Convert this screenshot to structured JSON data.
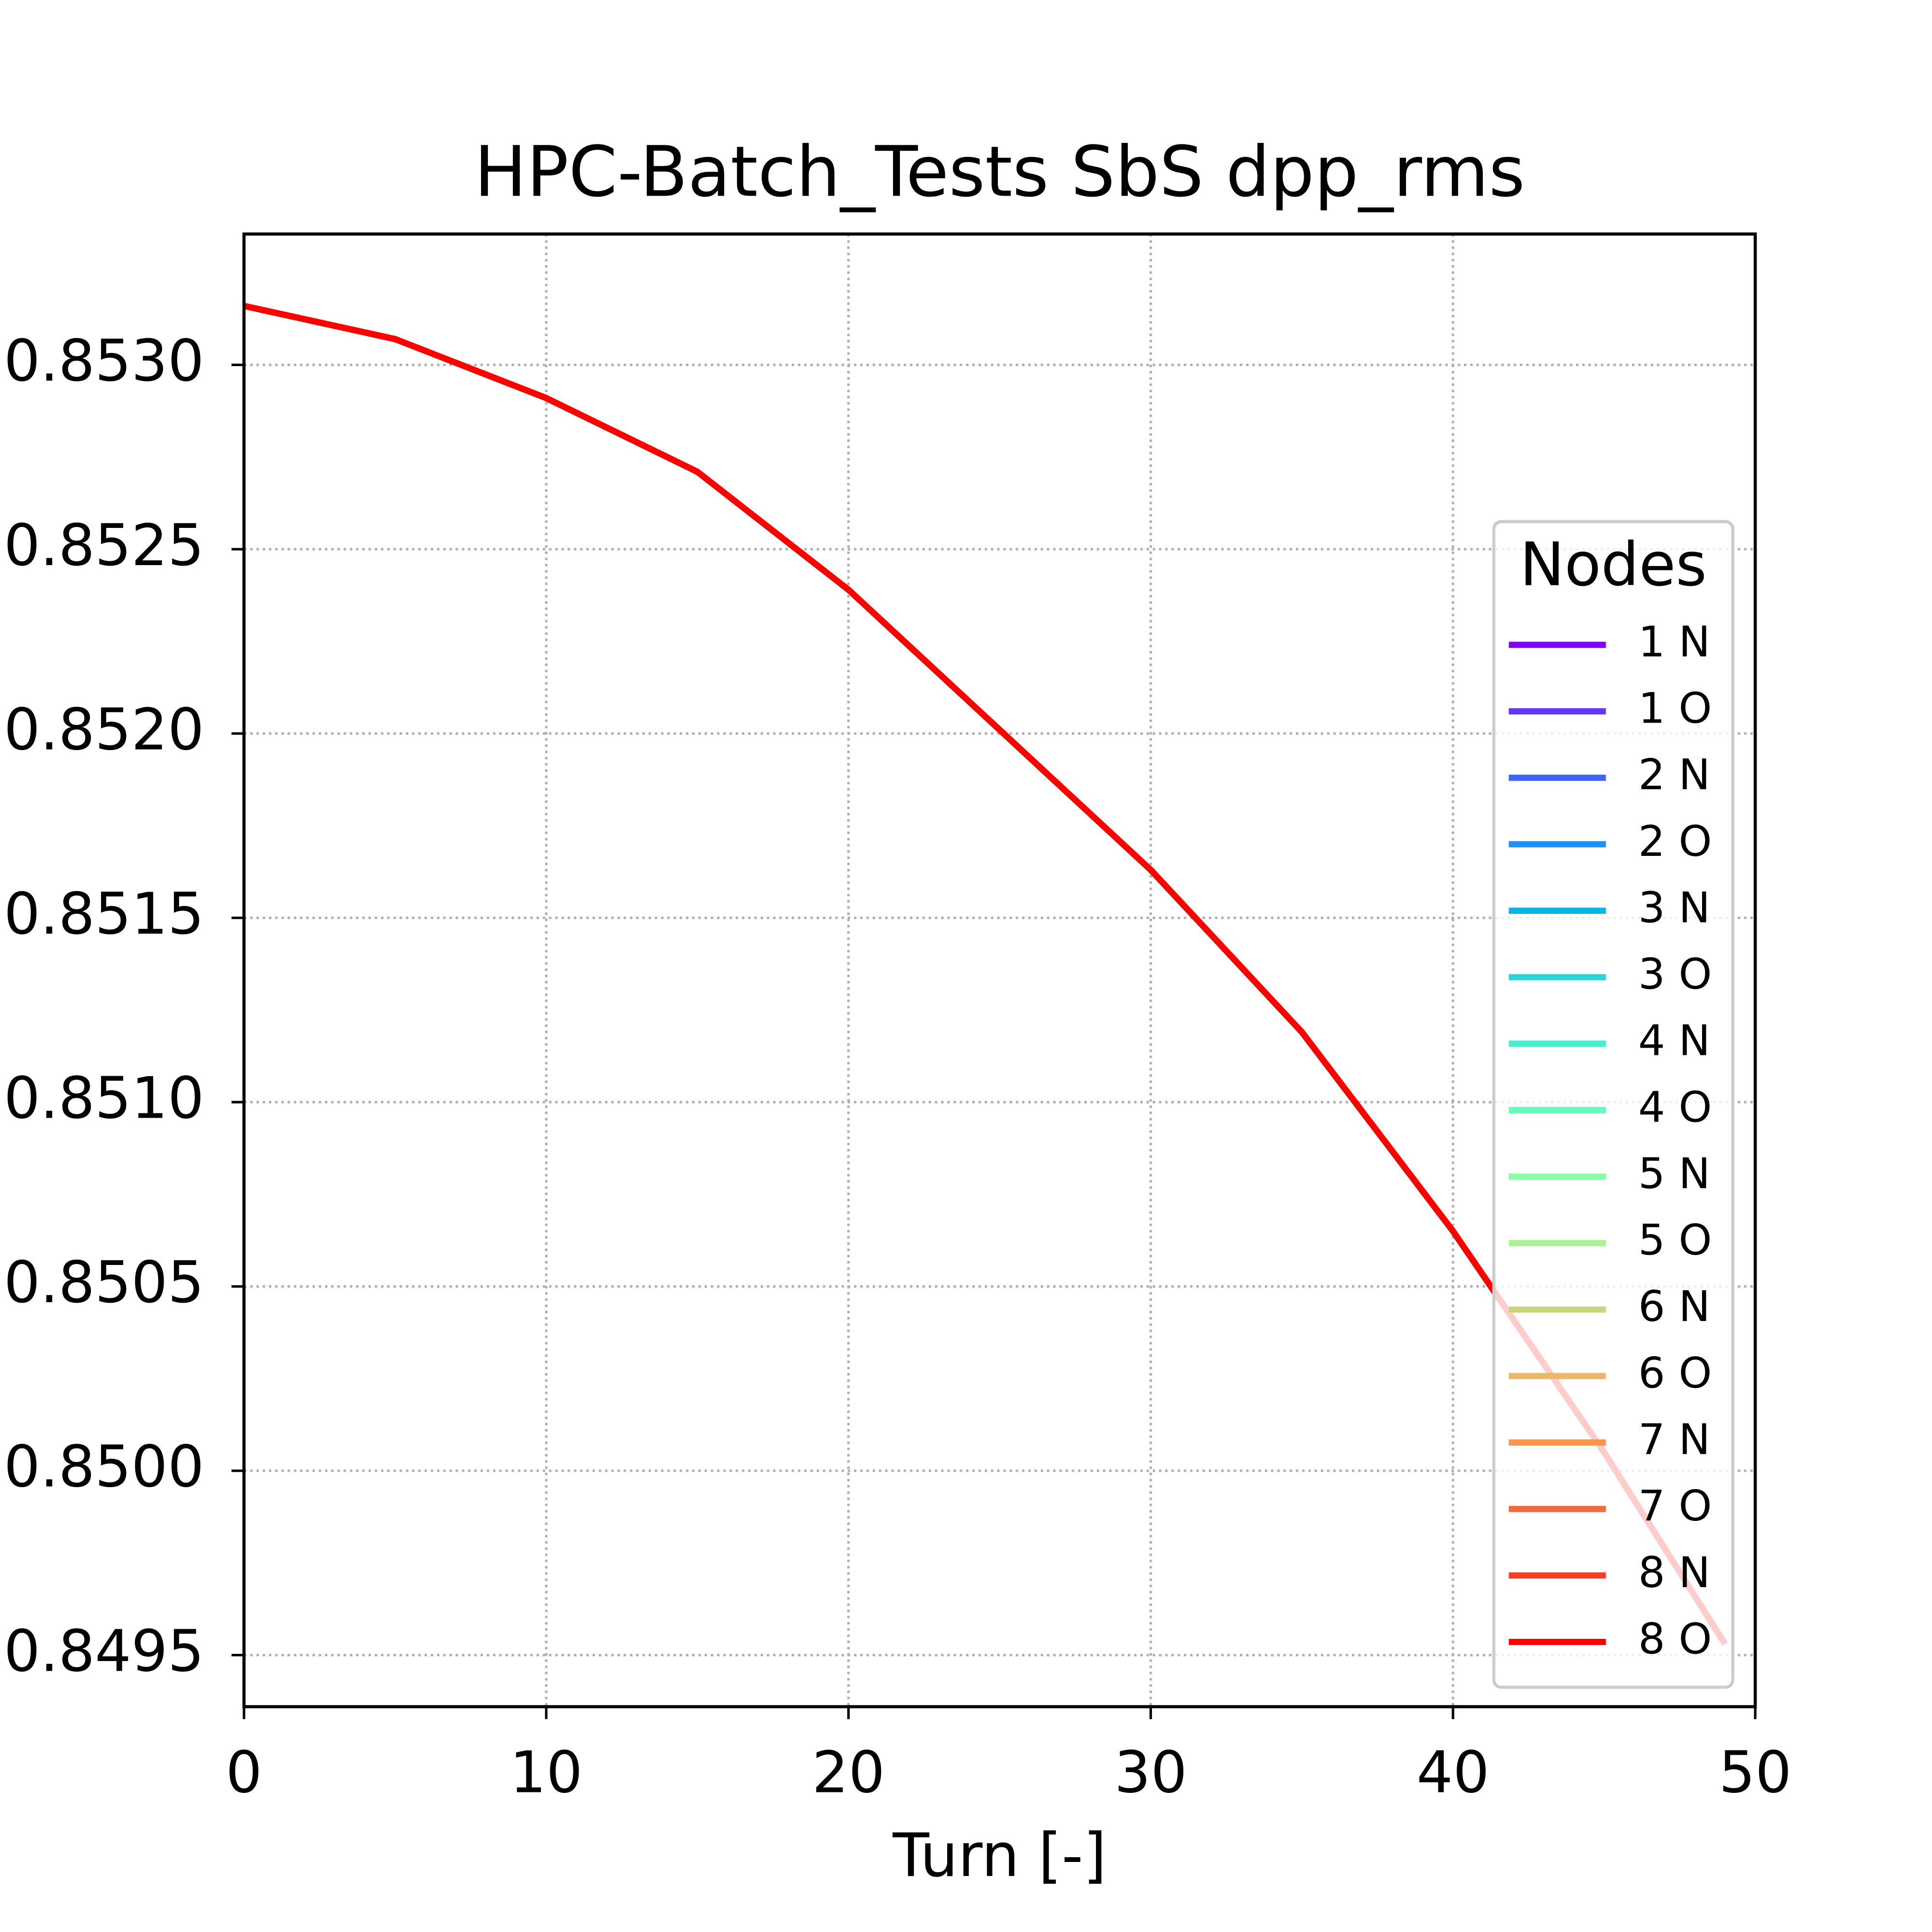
{
  "chart_data": {
    "type": "line",
    "title": "HPC-Batch_Tests SbS dpp_rms",
    "x_label": "Turn [-]",
    "x": [
      0,
      5,
      10,
      15,
      20,
      25,
      30,
      35,
      40,
      45,
      49
    ],
    "series": [
      {
        "name": "1 N",
        "color": "#8000ff",
        "values": [
          0.85316,
          0.85307,
          0.85291,
          0.85271,
          0.85239,
          0.85201,
          0.85163,
          0.85119,
          0.85065,
          0.85005,
          0.84953
        ]
      },
      {
        "name": "1 O",
        "color": "#6036fc",
        "values": [
          0.85316,
          0.85307,
          0.85291,
          0.85271,
          0.85239,
          0.85201,
          0.85163,
          0.85119,
          0.85065,
          0.85005,
          0.84953
        ]
      },
      {
        "name": "2 N",
        "color": "#3f64f8",
        "values": [
          0.85316,
          0.85307,
          0.85291,
          0.85271,
          0.85239,
          0.85201,
          0.85163,
          0.85119,
          0.85065,
          0.85005,
          0.84953
        ]
      },
      {
        "name": "2 O",
        "color": "#1e90f0",
        "values": [
          0.85316,
          0.85307,
          0.85291,
          0.85271,
          0.85239,
          0.85201,
          0.85163,
          0.85119,
          0.85065,
          0.85005,
          0.84953
        ]
      },
      {
        "name": "3 N",
        "color": "#04b8e6",
        "values": [
          0.85316,
          0.85307,
          0.85291,
          0.85271,
          0.85239,
          0.85201,
          0.85163,
          0.85119,
          0.85065,
          0.85005,
          0.84953
        ]
      },
      {
        "name": "3 O",
        "color": "#26d6da",
        "values": [
          0.85316,
          0.85307,
          0.85291,
          0.85271,
          0.85239,
          0.85201,
          0.85163,
          0.85119,
          0.85065,
          0.85005,
          0.84953
        ]
      },
      {
        "name": "4 N",
        "color": "#46eecb",
        "values": [
          0.85316,
          0.85307,
          0.85291,
          0.85271,
          0.85239,
          0.85201,
          0.85163,
          0.85119,
          0.85065,
          0.85005,
          0.84953
        ]
      },
      {
        "name": "4 O",
        "color": "#66fbb9",
        "values": [
          0.85316,
          0.85307,
          0.85291,
          0.85271,
          0.85239,
          0.85201,
          0.85163,
          0.85119,
          0.85065,
          0.85005,
          0.84953
        ]
      },
      {
        "name": "5 N",
        "color": "#88fca6",
        "values": [
          0.85316,
          0.85307,
          0.85291,
          0.85271,
          0.85239,
          0.85201,
          0.85163,
          0.85119,
          0.85065,
          0.85005,
          0.84953
        ]
      },
      {
        "name": "5 O",
        "color": "#a8f48f",
        "values": [
          0.85316,
          0.85307,
          0.85291,
          0.85271,
          0.85239,
          0.85201,
          0.85163,
          0.85119,
          0.85065,
          0.85005,
          0.84953
        ]
      },
      {
        "name": "6 N",
        "color": "#cad67a",
        "values": [
          0.85316,
          0.85307,
          0.85291,
          0.85271,
          0.85239,
          0.85201,
          0.85163,
          0.85119,
          0.85065,
          0.85005,
          0.84953
        ]
      },
      {
        "name": "6 O",
        "color": "#eab86c",
        "values": [
          0.85316,
          0.85307,
          0.85291,
          0.85271,
          0.85239,
          0.85201,
          0.85163,
          0.85119,
          0.85065,
          0.85005,
          0.84953
        ]
      },
      {
        "name": "7 N",
        "color": "#f89550",
        "values": [
          0.85316,
          0.85307,
          0.85291,
          0.85271,
          0.85239,
          0.85201,
          0.85163,
          0.85119,
          0.85065,
          0.85005,
          0.84953
        ]
      },
      {
        "name": "7 O",
        "color": "#f46a3e",
        "values": [
          0.85316,
          0.85307,
          0.85291,
          0.85271,
          0.85239,
          0.85201,
          0.85163,
          0.85119,
          0.85065,
          0.85005,
          0.84953
        ]
      },
      {
        "name": "8 N",
        "color": "#fc3d22",
        "values": [
          0.85316,
          0.85307,
          0.85291,
          0.85271,
          0.85239,
          0.85201,
          0.85163,
          0.85119,
          0.85065,
          0.85005,
          0.84953
        ]
      },
      {
        "name": "8 O",
        "color": "#ff0000",
        "values": [
          0.85316,
          0.85307,
          0.85291,
          0.85271,
          0.85239,
          0.85201,
          0.85163,
          0.85119,
          0.85065,
          0.85005,
          0.84953
        ]
      }
    ],
    "legend_title": "Nodes",
    "legend_position": "right",
    "xlim": [
      0,
      50
    ],
    "xticks": [
      0,
      10,
      20,
      30,
      40,
      50
    ],
    "ylim": [
      0.84936,
      0.853355
    ],
    "yticks": [
      {
        "value": 0.8495,
        "label": "0.8495"
      },
      {
        "value": 0.85,
        "label": "0.8500"
      },
      {
        "value": 0.8505,
        "label": "0.8505"
      },
      {
        "value": 0.851,
        "label": "0.8510"
      },
      {
        "value": 0.8515,
        "label": "0.8515"
      },
      {
        "value": 0.852,
        "label": "0.8520"
      },
      {
        "value": 0.8525,
        "label": "0.8525"
      },
      {
        "value": 0.853,
        "label": "0.8530"
      }
    ],
    "grid": true
  }
}
